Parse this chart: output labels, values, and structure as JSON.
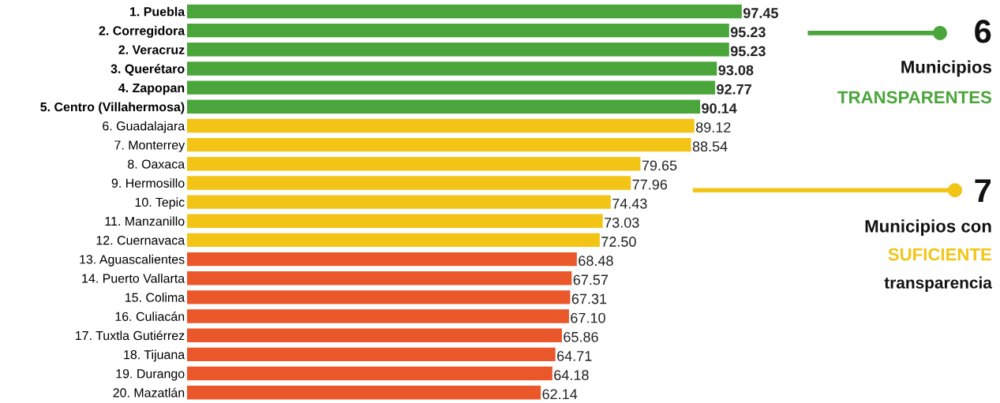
{
  "chart_data": {
    "type": "bar",
    "orientation": "horizontal",
    "categories": [
      "1. Puebla",
      "2. Corregidora",
      "2. Veracruz",
      "3. Querétaro",
      "4. Zapopan",
      "5. Centro (Villahermosa)",
      "6. Guadalajara",
      "7. Monterrey",
      "8. Oaxaca",
      "9. Hermosillo",
      "10. Tepic",
      "11. Manzanillo",
      "12. Cuernavaca",
      "13. Aguascalientes",
      "14. Puerto Vallarta",
      "15. Colima",
      "16. Culiacán",
      "17. Tuxtla Gutiérrez",
      "18. Tijuana",
      "19. Durango",
      "20. Mazatlán"
    ],
    "values": [
      97.45,
      95.23,
      95.23,
      93.08,
      92.77,
      90.14,
      89.12,
      88.54,
      79.65,
      77.96,
      74.43,
      73.03,
      72.5,
      68.48,
      67.57,
      67.31,
      67.1,
      65.86,
      64.71,
      64.18,
      62.14
    ],
    "value_labels": [
      "97.45",
      "95.23",
      "95.23",
      "93.08",
      "92.77",
      "90.14",
      "89.12",
      "88.54",
      "79.65",
      "77.96",
      "74.43",
      "73.03",
      "72.50",
      "68.48",
      "67.57",
      "67.31",
      "67.10",
      "65.86",
      "64.71",
      "64.18",
      "62.14"
    ],
    "colors": [
      "#4aa53a",
      "#4aa53a",
      "#4aa53a",
      "#4aa53a",
      "#4aa53a",
      "#4aa53a",
      "#f2c416",
      "#f2c416",
      "#f2c416",
      "#f2c416",
      "#f2c416",
      "#f2c416",
      "#f2c416",
      "#e9572b",
      "#e9572b",
      "#e9572b",
      "#e9572b",
      "#e9572b",
      "#e9572b",
      "#e9572b",
      "#e9572b"
    ],
    "tick_labels": "y",
    "annotations": [
      "6",
      "Municipios",
      "TRANSPARENTES",
      "7",
      "Municipios con",
      "SUFICIENTE",
      "transparencia"
    ]
  }
}
